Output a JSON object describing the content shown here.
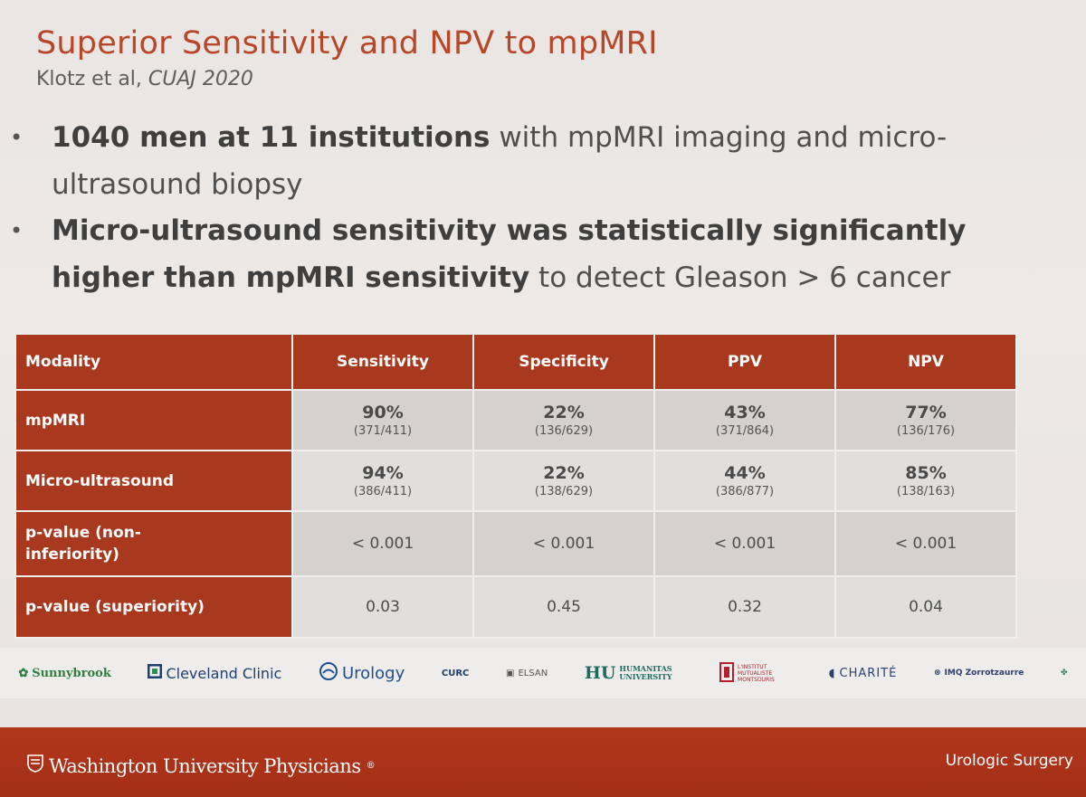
{
  "slide": {
    "title": "Superior Sensitivity and NPV to mpMRI",
    "citation_authors": "Klotz et al,",
    "citation_journal": "CUAJ 2020",
    "bullets": [
      {
        "bold": "1040 men at 11 institutions",
        "rest": " with mpMRI imaging and micro-ultrasound biopsy"
      },
      {
        "bold": "Micro-ultrasound sensitivity was statistically significantly higher than mpMRI sensitivity",
        "rest": " to detect Gleason > 6 cancer"
      }
    ]
  },
  "table": {
    "headers": [
      "Modality",
      "Sensitivity",
      "Specificity",
      "PPV",
      "NPV"
    ],
    "rows": [
      {
        "label": "mpMRI",
        "cells": [
          {
            "pct": "90%",
            "frac": "(371/411)"
          },
          {
            "pct": "22%",
            "frac": "(136/629)"
          },
          {
            "pct": "43%",
            "frac": "(371/864)"
          },
          {
            "pct": "77%",
            "frac": "(136/176)"
          }
        ]
      },
      {
        "label": "Micro-ultrasound",
        "cells": [
          {
            "pct": "94%",
            "frac": "(386/411)"
          },
          {
            "pct": "22%",
            "frac": "(138/629)"
          },
          {
            "pct": "44%",
            "frac": "(386/877)"
          },
          {
            "pct": "85%",
            "frac": "(138/163)"
          }
        ]
      },
      {
        "label": "p-value (non-inferiority)",
        "values": [
          "< 0.001",
          "< 0.001",
          "< 0.001",
          "< 0.001"
        ]
      },
      {
        "label": "p-value (superiority)",
        "values": [
          "0.03",
          "0.45",
          "0.32",
          "0.04"
        ]
      }
    ]
  },
  "logos": {
    "sunnybrook": "Sunnybrook",
    "cleveland": "Cleveland Clinic",
    "urology": "Urology",
    "curc": "CURC",
    "elsan": "ELSAN",
    "humanitas_mark": "HU",
    "humanitas_name": "HUMANITAS UNIVERSITY",
    "institut": "L'INSTITUT MUTUALISTE MONTSOURIS",
    "charite": "CHARITÉ",
    "imq": "IMQ Zorrotzaurre"
  },
  "footer": {
    "org": "Washington University Physicians",
    "trademark": "®",
    "dept": "Urologic Surgery"
  },
  "colors": {
    "accent": "#a8391f",
    "title": "#b8472a",
    "footer_bg": "#a22f16"
  }
}
